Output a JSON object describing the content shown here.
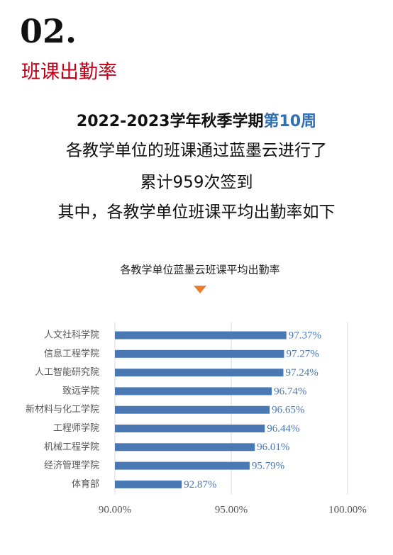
{
  "header": {
    "number": "02.",
    "title": "班课出勤率"
  },
  "intro": {
    "line1": {
      "text": "2022-2023学年秋季学期",
      "highlight": "第10周"
    },
    "lines": [
      "各教学单位的班课通过蓝墨云进行了",
      "累计959次签到",
      "其中，各教学单位班课平均出勤率如下"
    ]
  },
  "chart_data": {
    "type": "hbar",
    "title": "各教学单位蓝墨云班课平均出勤率",
    "categories": [
      "人文社科学院",
      "信息工程学院",
      "人工智能研究院",
      "致远学院",
      "新材料与化工学院",
      "工程师学院",
      "机械工程学院",
      "经济管理学院",
      "体育部"
    ],
    "values": [
      97.37,
      97.27,
      97.24,
      96.74,
      96.65,
      96.44,
      96.01,
      95.79,
      92.87
    ],
    "value_labels": [
      "97.37%",
      "97.27%",
      "97.24%",
      "96.74%",
      "96.65%",
      "96.44%",
      "96.01%",
      "95.79%",
      "92.87%"
    ],
    "color": "#4a78b5",
    "xlim": [
      90,
      100
    ],
    "xticks": [
      {
        "value": 90,
        "label": "90.00%"
      },
      {
        "value": 95,
        "label": "95.00%"
      },
      {
        "value": 100,
        "label": "100.00%"
      }
    ],
    "grid": true
  }
}
